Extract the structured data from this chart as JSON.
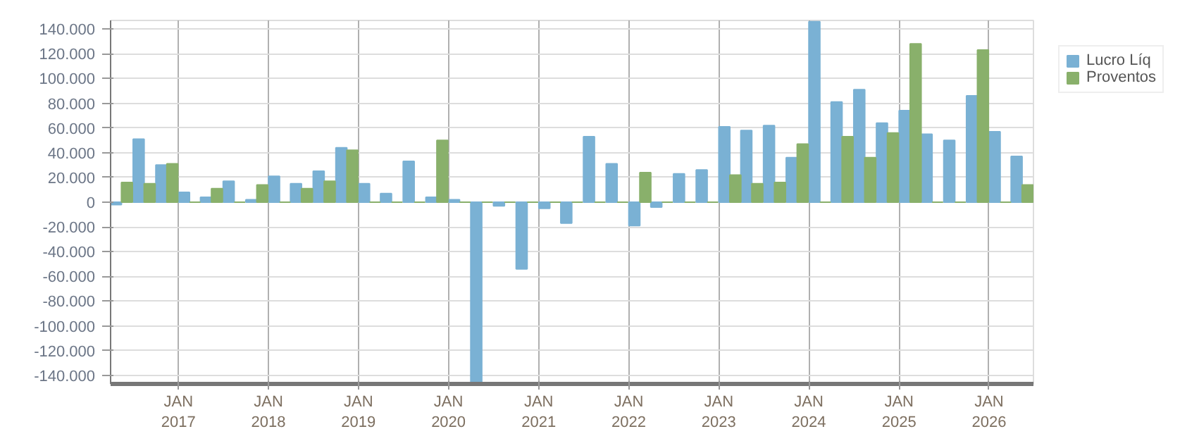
{
  "chart_data": {
    "type": "bar",
    "x": [
      "2016-05-15",
      "2016-08-15",
      "2016-11-15",
      "2017-02-15",
      "2017-05-15",
      "2017-08-15",
      "2017-11-15",
      "2018-02-15",
      "2018-05-15",
      "2018-08-15",
      "2018-11-15",
      "2019-02-15",
      "2019-05-15",
      "2019-08-15",
      "2019-11-15",
      "2020-02-15",
      "2020-05-15",
      "2020-08-15",
      "2020-11-15",
      "2021-02-15",
      "2021-05-15",
      "2021-08-15",
      "2021-11-15",
      "2022-02-15",
      "2022-05-15",
      "2022-08-15",
      "2022-11-15",
      "2023-02-15",
      "2023-05-15",
      "2023-08-15",
      "2023-11-15",
      "2024-02-15",
      "2024-05-15",
      "2024-08-15",
      "2024-11-15",
      "2025-02-15",
      "2025-05-15",
      "2025-08-15",
      "2025-11-15",
      "2026-02-15",
      "2026-05-15"
    ],
    "series": [
      {
        "name": "Lucro Líq",
        "color": "#7ab1d4",
        "values": [
          -2000,
          51000,
          30000,
          8000,
          4000,
          17000,
          2000,
          21000,
          15000,
          25000,
          44000,
          15000,
          7000,
          33000,
          4000,
          2000,
          -147000,
          -3000,
          -54000,
          -5000,
          -17000,
          53000,
          31000,
          -19000,
          -4000,
          23000,
          26000,
          61000,
          58000,
          62000,
          36000,
          146000,
          81000,
          91000,
          64000,
          74000,
          55000,
          50000,
          86000,
          57000,
          37000
        ]
      },
      {
        "name": "Proventos",
        "color": "#89b06b",
        "values": [
          16000,
          15000,
          31000,
          0,
          11000,
          0,
          14000,
          0,
          11000,
          17000,
          42000,
          0,
          0,
          0,
          50000,
          0,
          0,
          0,
          0,
          0,
          0,
          0,
          0,
          24000,
          0,
          0,
          0,
          22000,
          15000,
          16000,
          47000,
          0,
          53000,
          36000,
          56000,
          128000,
          0,
          0,
          123000,
          0,
          14000
        ]
      }
    ],
    "ylim": [
      -147000,
      147000
    ],
    "yticks": [
      {
        "value": -140000,
        "label": "-140.000"
      },
      {
        "value": -120000,
        "label": "-120.000"
      },
      {
        "value": -100000,
        "label": "-100.000"
      },
      {
        "value": -80000,
        "label": "-80.000"
      },
      {
        "value": -60000,
        "label": "-60.000"
      },
      {
        "value": -40000,
        "label": "-40.000"
      },
      {
        "value": -20000,
        "label": "-20.000"
      },
      0,
      {
        "value": 20000,
        "label": "20.000"
      },
      {
        "value": 40000,
        "label": "40.000"
      },
      {
        "value": 60000,
        "label": "60.000"
      },
      {
        "value": 80000,
        "label": "80.000"
      },
      {
        "value": 100000,
        "label": "100.000"
      },
      {
        "value": 120000,
        "label": "120.000"
      },
      {
        "value": 140000,
        "label": "140.000"
      }
    ],
    "xlim": [
      "2016-04-01",
      "2026-06-30"
    ],
    "xticks": [
      {
        "value": "2017-01-01",
        "label": "JAN\n2017"
      },
      {
        "value": "2018-01-01",
        "label": "JAN\n2018"
      },
      {
        "value": "2019-01-01",
        "label": "JAN\n2019"
      },
      {
        "value": "2020-01-01",
        "label": "JAN\n2020"
      },
      {
        "value": "2021-01-01",
        "label": "JAN\n2021"
      },
      {
        "value": "2022-01-01",
        "label": "JAN\n2022"
      },
      {
        "value": "2023-01-01",
        "label": "JAN\n2023"
      },
      {
        "value": "2024-01-01",
        "label": "JAN\n2024"
      },
      {
        "value": "2025-01-01",
        "label": "JAN\n2025"
      },
      {
        "value": "2026-01-01",
        "label": "JAN\n2026"
      }
    ],
    "grid": true,
    "legend": "top right"
  }
}
